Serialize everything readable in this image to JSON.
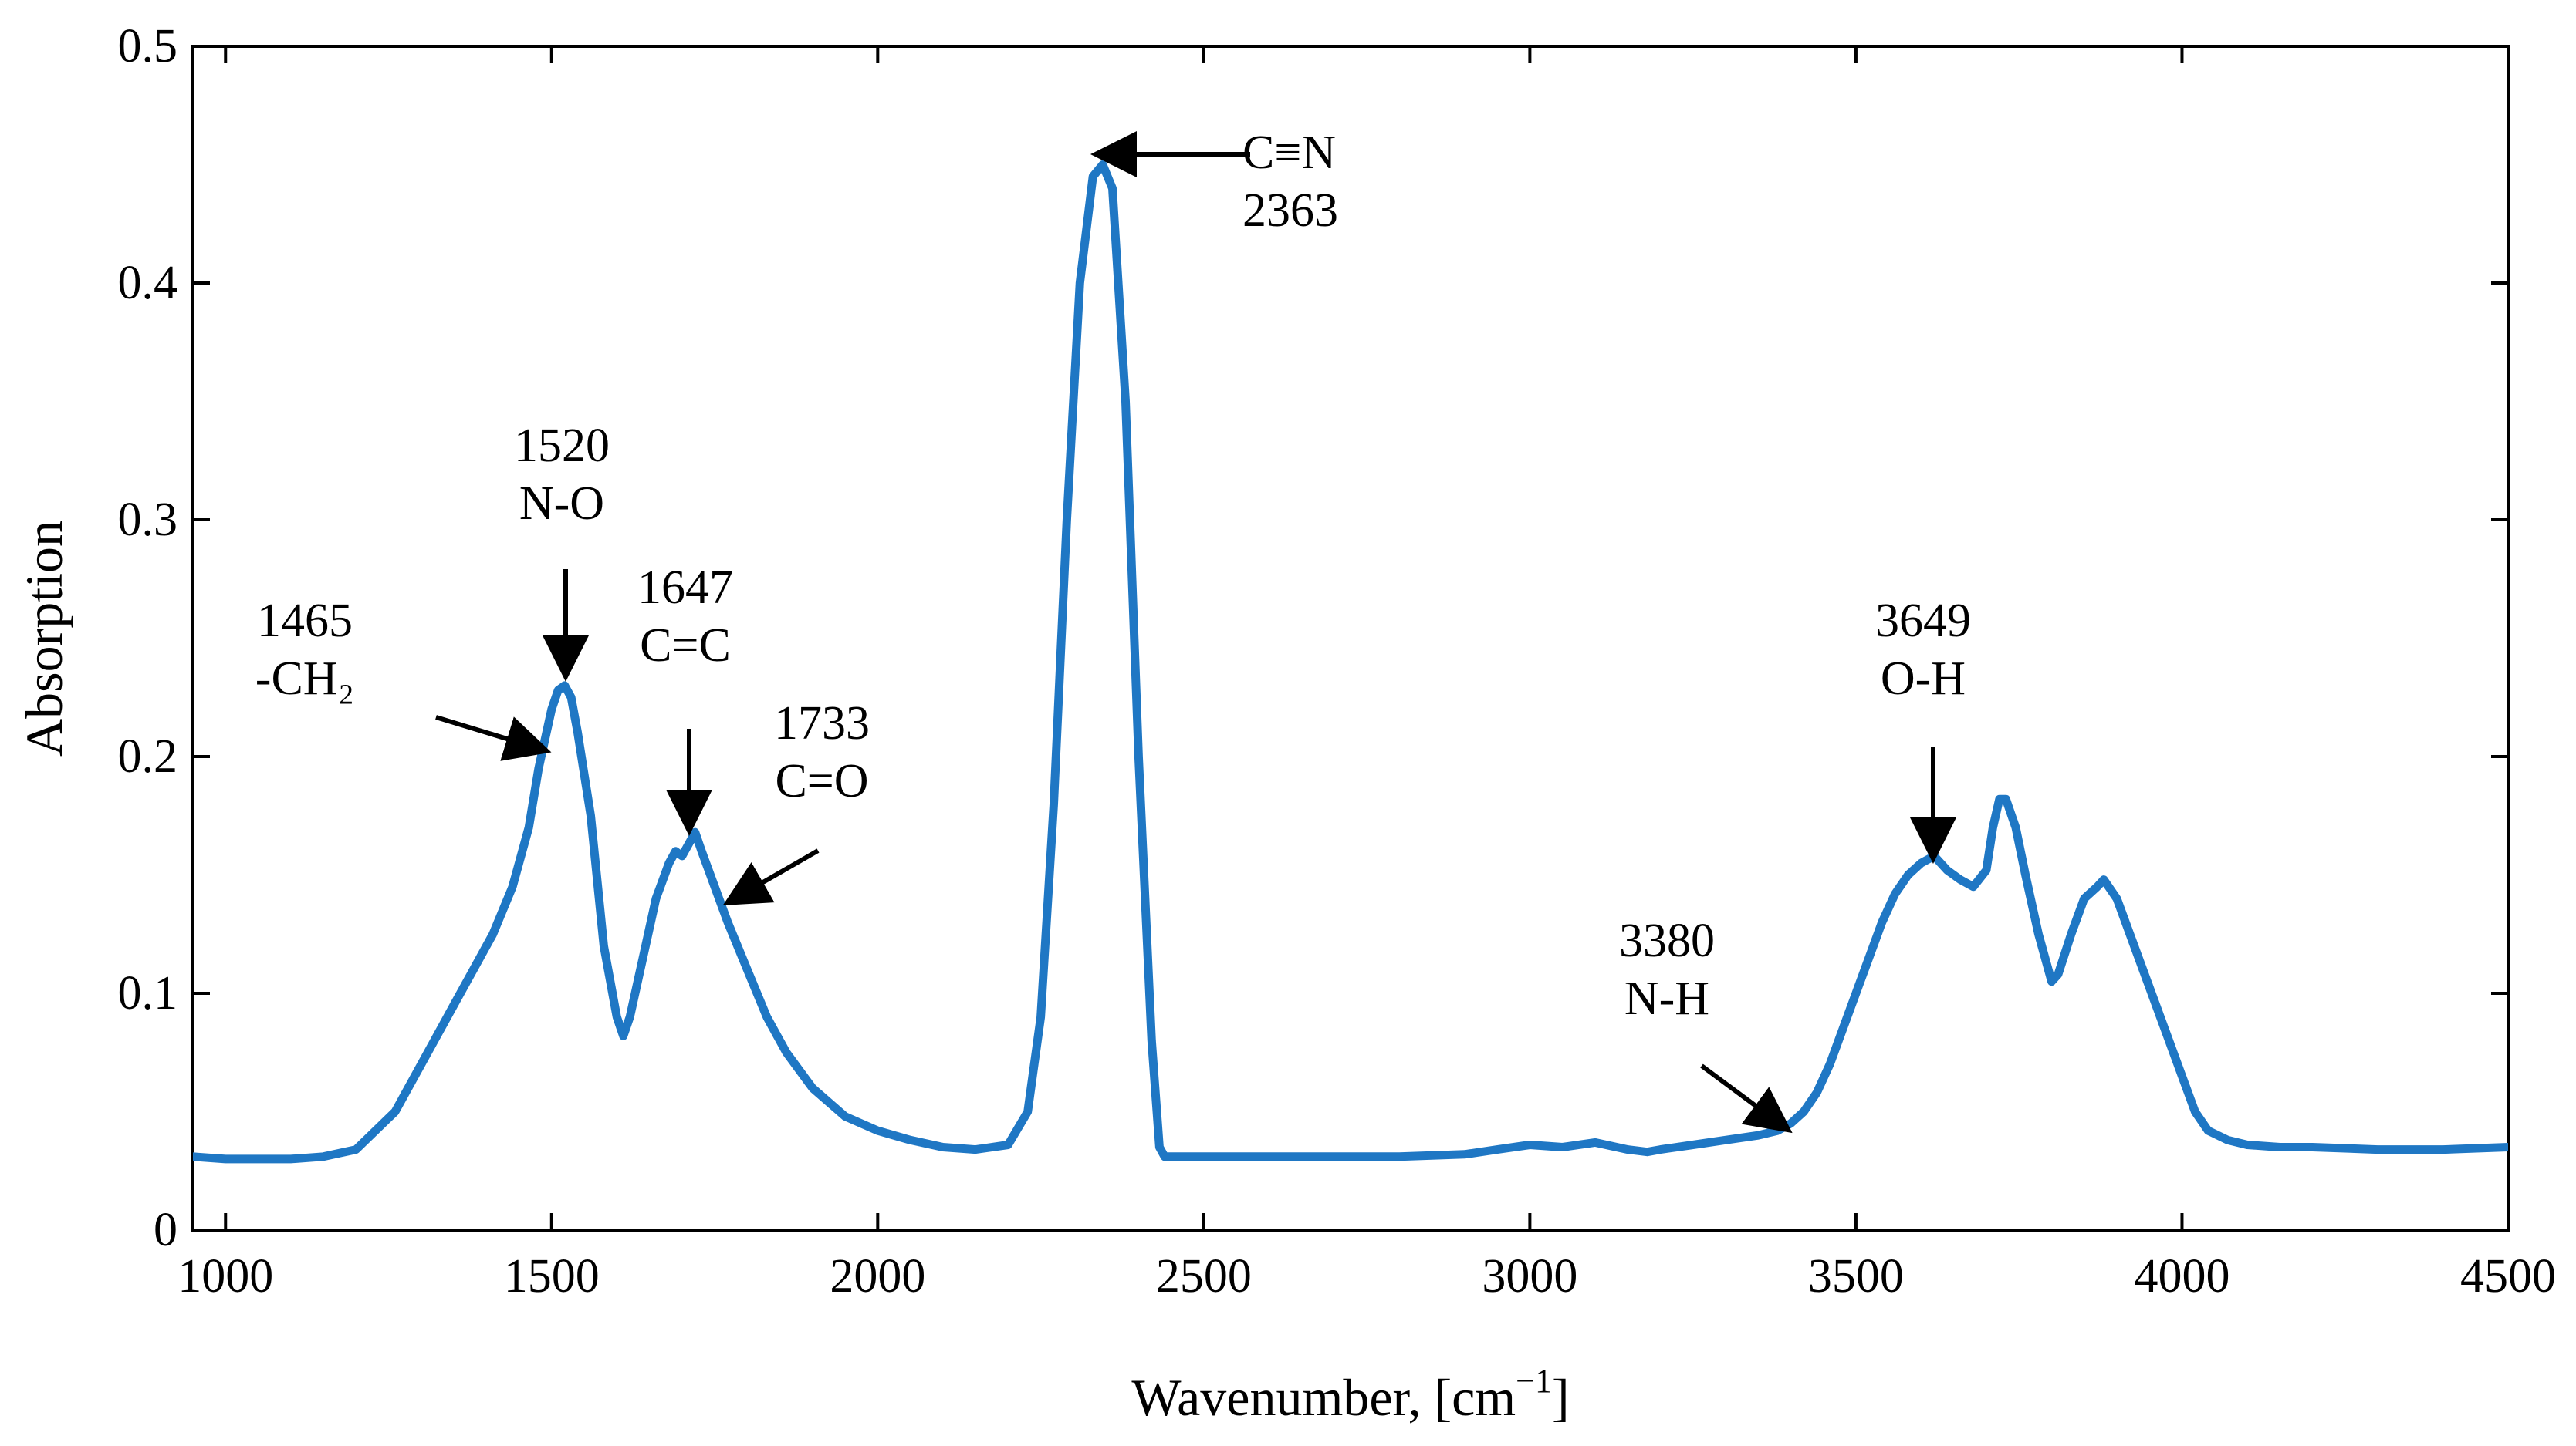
{
  "chart_data": {
    "type": "line",
    "title": "",
    "xlabel": "Wavenumber, [cm",
    "xlabel_sup": "−1",
    "xlabel_close": "]",
    "ylabel": "Absorption",
    "xlim": [
      950,
      4500
    ],
    "ylim": [
      0,
      0.5
    ],
    "xticks": [
      1000,
      1500,
      2000,
      2500,
      3000,
      3500,
      4000,
      4500
    ],
    "yticks": [
      0,
      0.1,
      0.2,
      0.3,
      0.4,
      0.5
    ],
    "xtick_labels": [
      "1000",
      "1500",
      "2000",
      "2500",
      "3000",
      "3500",
      "4000",
      "4500"
    ],
    "ytick_labels": [
      "0",
      "0.1",
      "0.2",
      "0.3",
      "0.4",
      "0.5"
    ],
    "line_color": "#1f77c4",
    "series": [
      {
        "name": "spectrum",
        "x": [
          950,
          1000,
          1050,
          1100,
          1150,
          1200,
          1230,
          1260,
          1290,
          1320,
          1350,
          1380,
          1410,
          1440,
          1465,
          1480,
          1500,
          1510,
          1520,
          1530,
          1540,
          1560,
          1580,
          1600,
          1610,
          1620,
          1640,
          1660,
          1680,
          1690,
          1700,
          1710,
          1720,
          1730,
          1750,
          1770,
          1800,
          1830,
          1860,
          1900,
          1950,
          2000,
          2050,
          2100,
          2150,
          2200,
          2230,
          2250,
          2270,
          2290,
          2310,
          2330,
          2345,
          2360,
          2380,
          2400,
          2420,
          2432,
          2440,
          2460,
          2500,
          2600,
          2700,
          2800,
          2900,
          2950,
          3000,
          3050,
          3100,
          3150,
          3180,
          3200,
          3250,
          3300,
          3350,
          3380,
          3400,
          3420,
          3440,
          3460,
          3480,
          3500,
          3520,
          3540,
          3560,
          3580,
          3600,
          3620,
          3640,
          3660,
          3680,
          3700,
          3710,
          3720,
          3730,
          3745,
          3760,
          3780,
          3800,
          3810,
          3830,
          3850,
          3870,
          3880,
          3900,
          3920,
          3940,
          3960,
          3980,
          4000,
          4020,
          4040,
          4070,
          4100,
          4150,
          4200,
          4300,
          4400,
          4500
        ],
        "y": [
          0.031,
          0.03,
          0.03,
          0.03,
          0.031,
          0.034,
          0.042,
          0.05,
          0.065,
          0.08,
          0.095,
          0.11,
          0.125,
          0.145,
          0.17,
          0.195,
          0.22,
          0.228,
          0.23,
          0.225,
          0.21,
          0.175,
          0.12,
          0.09,
          0.082,
          0.09,
          0.115,
          0.14,
          0.155,
          0.16,
          0.158,
          0.163,
          0.168,
          0.16,
          0.145,
          0.13,
          0.11,
          0.09,
          0.075,
          0.06,
          0.048,
          0.042,
          0.038,
          0.035,
          0.034,
          0.036,
          0.05,
          0.09,
          0.18,
          0.3,
          0.4,
          0.445,
          0.45,
          0.44,
          0.35,
          0.2,
          0.08,
          0.035,
          0.031,
          0.031,
          0.031,
          0.031,
          0.031,
          0.031,
          0.032,
          0.034,
          0.036,
          0.035,
          0.037,
          0.034,
          0.033,
          0.034,
          0.036,
          0.038,
          0.04,
          0.042,
          0.045,
          0.05,
          0.058,
          0.07,
          0.085,
          0.1,
          0.115,
          0.13,
          0.142,
          0.15,
          0.155,
          0.158,
          0.152,
          0.148,
          0.145,
          0.152,
          0.17,
          0.182,
          0.182,
          0.17,
          0.15,
          0.125,
          0.105,
          0.108,
          0.125,
          0.14,
          0.145,
          0.148,
          0.14,
          0.125,
          0.11,
          0.095,
          0.08,
          0.065,
          0.05,
          0.042,
          0.038,
          0.036,
          0.035,
          0.035,
          0.034,
          0.034,
          0.035
        ]
      }
    ],
    "annotations": [
      {
        "lines": [
          "1465",
          "-CH₂"
        ],
        "peak_x": 1465,
        "peak_y": 0.2
      },
      {
        "lines": [
          "1520",
          "N-O"
        ],
        "peak_x": 1520,
        "peak_y": 0.23
      },
      {
        "lines": [
          "1647",
          "C=C"
        ],
        "peak_x": 1647,
        "peak_y": 0.168
      },
      {
        "lines": [
          "1733",
          "C=O"
        ],
        "peak_x": 1733,
        "peak_y": 0.135
      },
      {
        "lines": [
          "C≡N",
          "2363"
        ],
        "peak_x": 2363,
        "peak_y": 0.452
      },
      {
        "lines": [
          "3380",
          "N-H"
        ],
        "peak_x": 3380,
        "peak_y": 0.043
      },
      {
        "lines": [
          "3649",
          "O-H"
        ],
        "peak_x": 3649,
        "peak_y": 0.158
      }
    ]
  }
}
